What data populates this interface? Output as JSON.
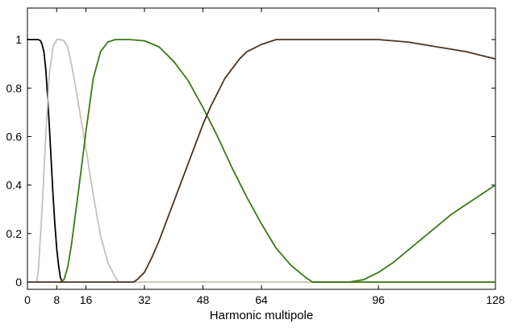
{
  "chart_data": {
    "type": "line",
    "title": "",
    "xlabel": "Harmonic multipole",
    "ylabel": "",
    "xlim": [
      0,
      128
    ],
    "ylim": [
      -0.03,
      1.13
    ],
    "x_ticks": [
      0,
      8,
      16,
      32,
      48,
      64,
      96,
      128
    ],
    "y_ticks": [
      0,
      0.2,
      0.4,
      0.6,
      0.8,
      1
    ],
    "x_tick_labels": [
      "0",
      "8",
      "16",
      "32",
      "48",
      "64",
      "96",
      "128"
    ],
    "y_tick_labels": [
      "0",
      "0.2",
      "0.4",
      "0.6",
      "0.8",
      "1"
    ],
    "grid": false,
    "series": [
      {
        "color": "#000000",
        "points": [
          [
            0,
            1
          ],
          [
            1,
            1
          ],
          [
            2,
            1
          ],
          [
            3,
            1
          ],
          [
            3.6,
            0.995
          ],
          [
            4,
            0.98
          ],
          [
            4.5,
            0.95
          ],
          [
            5,
            0.88
          ],
          [
            5.5,
            0.77
          ],
          [
            6,
            0.64
          ],
          [
            6.5,
            0.5
          ],
          [
            7,
            0.36
          ],
          [
            7.5,
            0.24
          ],
          [
            8,
            0.14
          ],
          [
            8.5,
            0.07
          ],
          [
            9,
            0.02
          ],
          [
            9.5,
            0
          ]
        ]
      },
      {
        "color": "#c4c1b4",
        "points": [
          [
            2.5,
            0
          ],
          [
            3,
            0.05
          ],
          [
            4,
            0.3
          ],
          [
            5,
            0.6
          ],
          [
            6,
            0.86
          ],
          [
            7,
            0.97
          ],
          [
            8,
            1
          ],
          [
            9,
            1
          ],
          [
            10,
            0.995
          ],
          [
            11,
            0.97
          ],
          [
            12,
            0.9
          ],
          [
            13,
            0.82
          ],
          [
            14,
            0.73
          ],
          [
            16,
            0.55
          ],
          [
            18,
            0.36
          ],
          [
            20,
            0.19
          ],
          [
            22,
            0.08
          ],
          [
            24,
            0.02
          ],
          [
            25,
            0
          ],
          [
            32,
            0
          ],
          [
            128,
            0
          ]
        ]
      },
      {
        "color": "#3b7a12",
        "points": [
          [
            9,
            0
          ],
          [
            10,
            0.01
          ],
          [
            11,
            0.06
          ],
          [
            12,
            0.15
          ],
          [
            14,
            0.38
          ],
          [
            16,
            0.62
          ],
          [
            18,
            0.84
          ],
          [
            20,
            0.95
          ],
          [
            22,
            0.99
          ],
          [
            24,
            1
          ],
          [
            28,
            1
          ],
          [
            32,
            0.995
          ],
          [
            36,
            0.97
          ],
          [
            40,
            0.91
          ],
          [
            44,
            0.83
          ],
          [
            48,
            0.72
          ],
          [
            52,
            0.6
          ],
          [
            56,
            0.47
          ],
          [
            60,
            0.35
          ],
          [
            64,
            0.24
          ],
          [
            68,
            0.14
          ],
          [
            72,
            0.07
          ],
          [
            76,
            0.02
          ],
          [
            78,
            0
          ],
          [
            85,
            0
          ],
          [
            128,
            0
          ]
        ]
      },
      {
        "color": "#4a3522",
        "points": [
          [
            0,
            0
          ],
          [
            29,
            0
          ],
          [
            30,
            0.01
          ],
          [
            32,
            0.04
          ],
          [
            34,
            0.1
          ],
          [
            36,
            0.17
          ],
          [
            38,
            0.25
          ],
          [
            40,
            0.33
          ],
          [
            42,
            0.41
          ],
          [
            44,
            0.49
          ],
          [
            46,
            0.57
          ],
          [
            48,
            0.65
          ],
          [
            50,
            0.72
          ],
          [
            52,
            0.78
          ],
          [
            54,
            0.84
          ],
          [
            56,
            0.88
          ],
          [
            58,
            0.92
          ],
          [
            60,
            0.95
          ],
          [
            64,
            0.98
          ],
          [
            68,
            1
          ],
          [
            72,
            1
          ],
          [
            80,
            1
          ],
          [
            88,
            1
          ],
          [
            96,
            1
          ],
          [
            100,
            0.995
          ],
          [
            104,
            0.99
          ],
          [
            108,
            0.98
          ],
          [
            112,
            0.97
          ],
          [
            116,
            0.96
          ],
          [
            120,
            0.95
          ],
          [
            124,
            0.935
          ],
          [
            128,
            0.92
          ]
        ]
      },
      {
        "color": "#3b7a12",
        "points": [
          [
            78,
            0
          ],
          [
            88,
            0
          ],
          [
            92,
            0.01
          ],
          [
            96,
            0.04
          ],
          [
            100,
            0.08
          ],
          [
            104,
            0.13
          ],
          [
            108,
            0.18
          ],
          [
            112,
            0.23
          ],
          [
            116,
            0.28
          ],
          [
            120,
            0.32
          ],
          [
            124,
            0.36
          ],
          [
            128,
            0.4
          ]
        ]
      }
    ]
  }
}
